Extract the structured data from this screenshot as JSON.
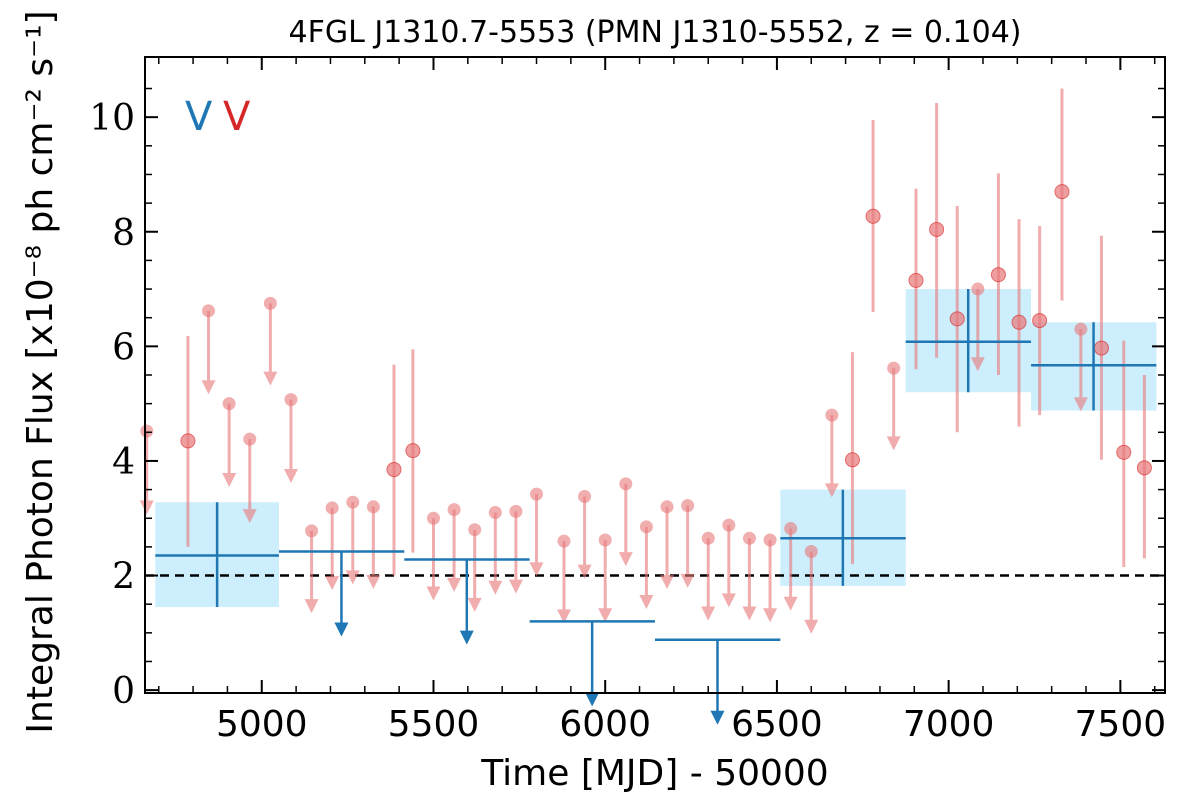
{
  "chart_data": {
    "type": "scatter",
    "title": "4FGL J1310.7-5553 (PMN J1310-5552, z = 0.104)",
    "xlabel": "Time [MJD] - 50000",
    "ylabel": "Integral Photon Flux [x10⁻⁸ ph cm⁻² s⁻¹]",
    "xlim": [
      4660,
      7630
    ],
    "ylim": [
      -0.05,
      11.05
    ],
    "xticks": [
      5000,
      5500,
      6000,
      6500,
      7000,
      7500
    ],
    "yticks": [
      0,
      2,
      4,
      6,
      8,
      10
    ],
    "xtick_labels": [
      "5000",
      "5500",
      "6000",
      "6500",
      "7000",
      "7500"
    ],
    "ytick_labels": [
      "0",
      "2",
      "4",
      "6",
      "8",
      "10"
    ],
    "reference_line": {
      "y": 2.0,
      "style": "dashed",
      "color": "#000000"
    },
    "legend": [
      {
        "label": "V",
        "color": "#1f77b4"
      },
      {
        "label": "V",
        "color": "#d62728"
      }
    ],
    "series": [
      {
        "color": "#1f77b4",
        "band_color": "#cdeefc",
        "detections": [
          {
            "x0": 4690,
            "x1": 5050,
            "y": 2.35,
            "ylo": 1.45,
            "yhi": 3.28,
            "xc": 4870
          },
          {
            "x0": 6510,
            "x1": 6875,
            "y": 2.65,
            "ylo": 1.82,
            "yhi": 3.5,
            "xc": 6692
          },
          {
            "x0": 6875,
            "x1": 7240,
            "y": 6.08,
            "ylo": 5.2,
            "yhi": 7.0,
            "xc": 7057
          },
          {
            "x0": 7240,
            "x1": 7605,
            "y": 5.67,
            "ylo": 4.88,
            "yhi": 6.42,
            "xc": 7422
          }
        ],
        "upper_limits": [
          {
            "x0": 5050,
            "x1": 5415,
            "y": 2.42,
            "xc": 5232
          },
          {
            "x0": 5415,
            "x1": 5780,
            "y": 2.28,
            "xc": 5597
          },
          {
            "x0": 5780,
            "x1": 6145,
            "y": 1.2,
            "xc": 5962
          },
          {
            "x0": 6145,
            "x1": 6510,
            "y": 0.88,
            "xc": 6327
          }
        ]
      },
      {
        "color": "#e8787a",
        "detections": [
          {
            "x": 4785,
            "y": 4.35,
            "ylo": 2.5,
            "yhi": 6.18
          },
          {
            "x": 5385,
            "y": 3.85,
            "ylo": 2.0,
            "yhi": 5.68
          },
          {
            "x": 5440,
            "y": 4.18,
            "ylo": 2.4,
            "yhi": 5.95
          },
          {
            "x": 6720,
            "y": 4.02,
            "ylo": 2.2,
            "yhi": 5.9
          },
          {
            "x": 6780,
            "y": 8.27,
            "ylo": 6.6,
            "yhi": 9.95
          },
          {
            "x": 6905,
            "y": 7.15,
            "ylo": 5.6,
            "yhi": 8.75
          },
          {
            "x": 6965,
            "y": 8.04,
            "ylo": 5.8,
            "yhi": 10.25
          },
          {
            "x": 7025,
            "y": 6.48,
            "ylo": 4.5,
            "yhi": 8.45
          },
          {
            "x": 7145,
            "y": 7.25,
            "ylo": 5.5,
            "yhi": 9.02
          },
          {
            "x": 7205,
            "y": 6.42,
            "ylo": 4.6,
            "yhi": 8.22
          },
          {
            "x": 7265,
            "y": 6.45,
            "ylo": 4.8,
            "yhi": 8.1
          },
          {
            "x": 7330,
            "y": 8.7,
            "ylo": 6.8,
            "yhi": 10.5
          },
          {
            "x": 7445,
            "y": 5.97,
            "ylo": 4.02,
            "yhi": 7.93
          },
          {
            "x": 7510,
            "y": 4.15,
            "ylo": 2.15,
            "yhi": 6.1
          },
          {
            "x": 7570,
            "y": 3.88,
            "ylo": 2.3,
            "yhi": 5.5
          }
        ],
        "upper_limits": [
          {
            "x": 4665,
            "y": 4.52,
            "tip": 3.1
          },
          {
            "x": 4845,
            "y": 6.62,
            "tip": 5.2
          },
          {
            "x": 4905,
            "y": 5.0,
            "tip": 3.58
          },
          {
            "x": 4965,
            "y": 4.38,
            "tip": 2.95
          },
          {
            "x": 5025,
            "y": 6.75,
            "tip": 5.35
          },
          {
            "x": 5085,
            "y": 5.07,
            "tip": 3.65
          },
          {
            "x": 5145,
            "y": 2.78,
            "tip": 1.38
          },
          {
            "x": 5205,
            "y": 3.18,
            "tip": 1.78
          },
          {
            "x": 5265,
            "y": 3.28,
            "tip": 1.88
          },
          {
            "x": 5325,
            "y": 3.2,
            "tip": 1.8
          },
          {
            "x": 5500,
            "y": 3.0,
            "tip": 1.6
          },
          {
            "x": 5560,
            "y": 3.15,
            "tip": 1.75
          },
          {
            "x": 5620,
            "y": 2.8,
            "tip": 1.4
          },
          {
            "x": 5680,
            "y": 3.1,
            "tip": 1.7
          },
          {
            "x": 5740,
            "y": 3.12,
            "tip": 1.72
          },
          {
            "x": 5800,
            "y": 3.42,
            "tip": 2.02
          },
          {
            "x": 5880,
            "y": 2.6,
            "tip": 1.2
          },
          {
            "x": 5940,
            "y": 3.38,
            "tip": 1.98
          },
          {
            "x": 6000,
            "y": 2.62,
            "tip": 1.22
          },
          {
            "x": 6060,
            "y": 3.6,
            "tip": 2.2
          },
          {
            "x": 6120,
            "y": 2.85,
            "tip": 1.45
          },
          {
            "x": 6180,
            "y": 3.2,
            "tip": 1.8
          },
          {
            "x": 6240,
            "y": 3.22,
            "tip": 1.82
          },
          {
            "x": 6300,
            "y": 2.65,
            "tip": 1.25
          },
          {
            "x": 6360,
            "y": 2.88,
            "tip": 1.48
          },
          {
            "x": 6420,
            "y": 2.65,
            "tip": 1.25
          },
          {
            "x": 6480,
            "y": 2.62,
            "tip": 1.22
          },
          {
            "x": 6540,
            "y": 2.82,
            "tip": 1.42
          },
          {
            "x": 6600,
            "y": 2.42,
            "tip": 1.02
          },
          {
            "x": 6660,
            "y": 4.8,
            "tip": 3.4
          },
          {
            "x": 6840,
            "y": 5.62,
            "tip": 4.22
          },
          {
            "x": 7085,
            "y": 7.0,
            "tip": 5.6
          },
          {
            "x": 7385,
            "y": 6.3,
            "tip": 4.9
          }
        ]
      }
    ]
  }
}
